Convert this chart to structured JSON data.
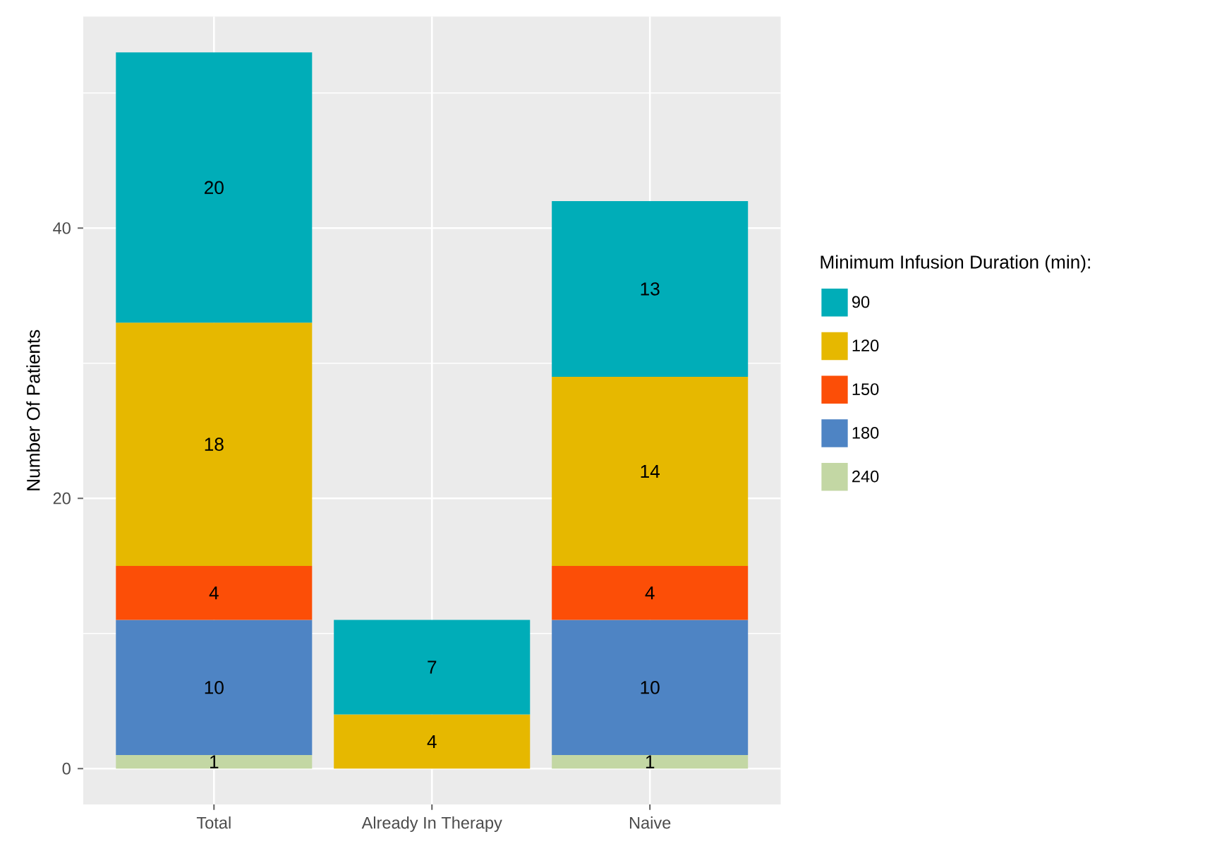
{
  "chart_data": {
    "type": "bar",
    "stacked": true,
    "ylabel": "Number Of Patients",
    "legend_title": "Minimum Infusion Duration (min):",
    "categories": [
      "Total",
      "Already In Therapy",
      "Naive"
    ],
    "series": [
      {
        "name": "240",
        "color": "#c3d7a4",
        "values": [
          1,
          null,
          1
        ]
      },
      {
        "name": "180",
        "color": "#4e84c4",
        "values": [
          10,
          null,
          10
        ]
      },
      {
        "name": "150",
        "color": "#fc4e07",
        "values": [
          4,
          null,
          4
        ]
      },
      {
        "name": "120",
        "color": "#e6b800",
        "values": [
          18,
          4,
          14
        ]
      },
      {
        "name": "90",
        "color": "#00adb8",
        "values": [
          20,
          7,
          13
        ]
      }
    ],
    "ylim": [
      -2.65,
      55.65
    ],
    "yticks": [
      0,
      20,
      40
    ],
    "grid": true,
    "legend": "right",
    "data_labels": true
  }
}
